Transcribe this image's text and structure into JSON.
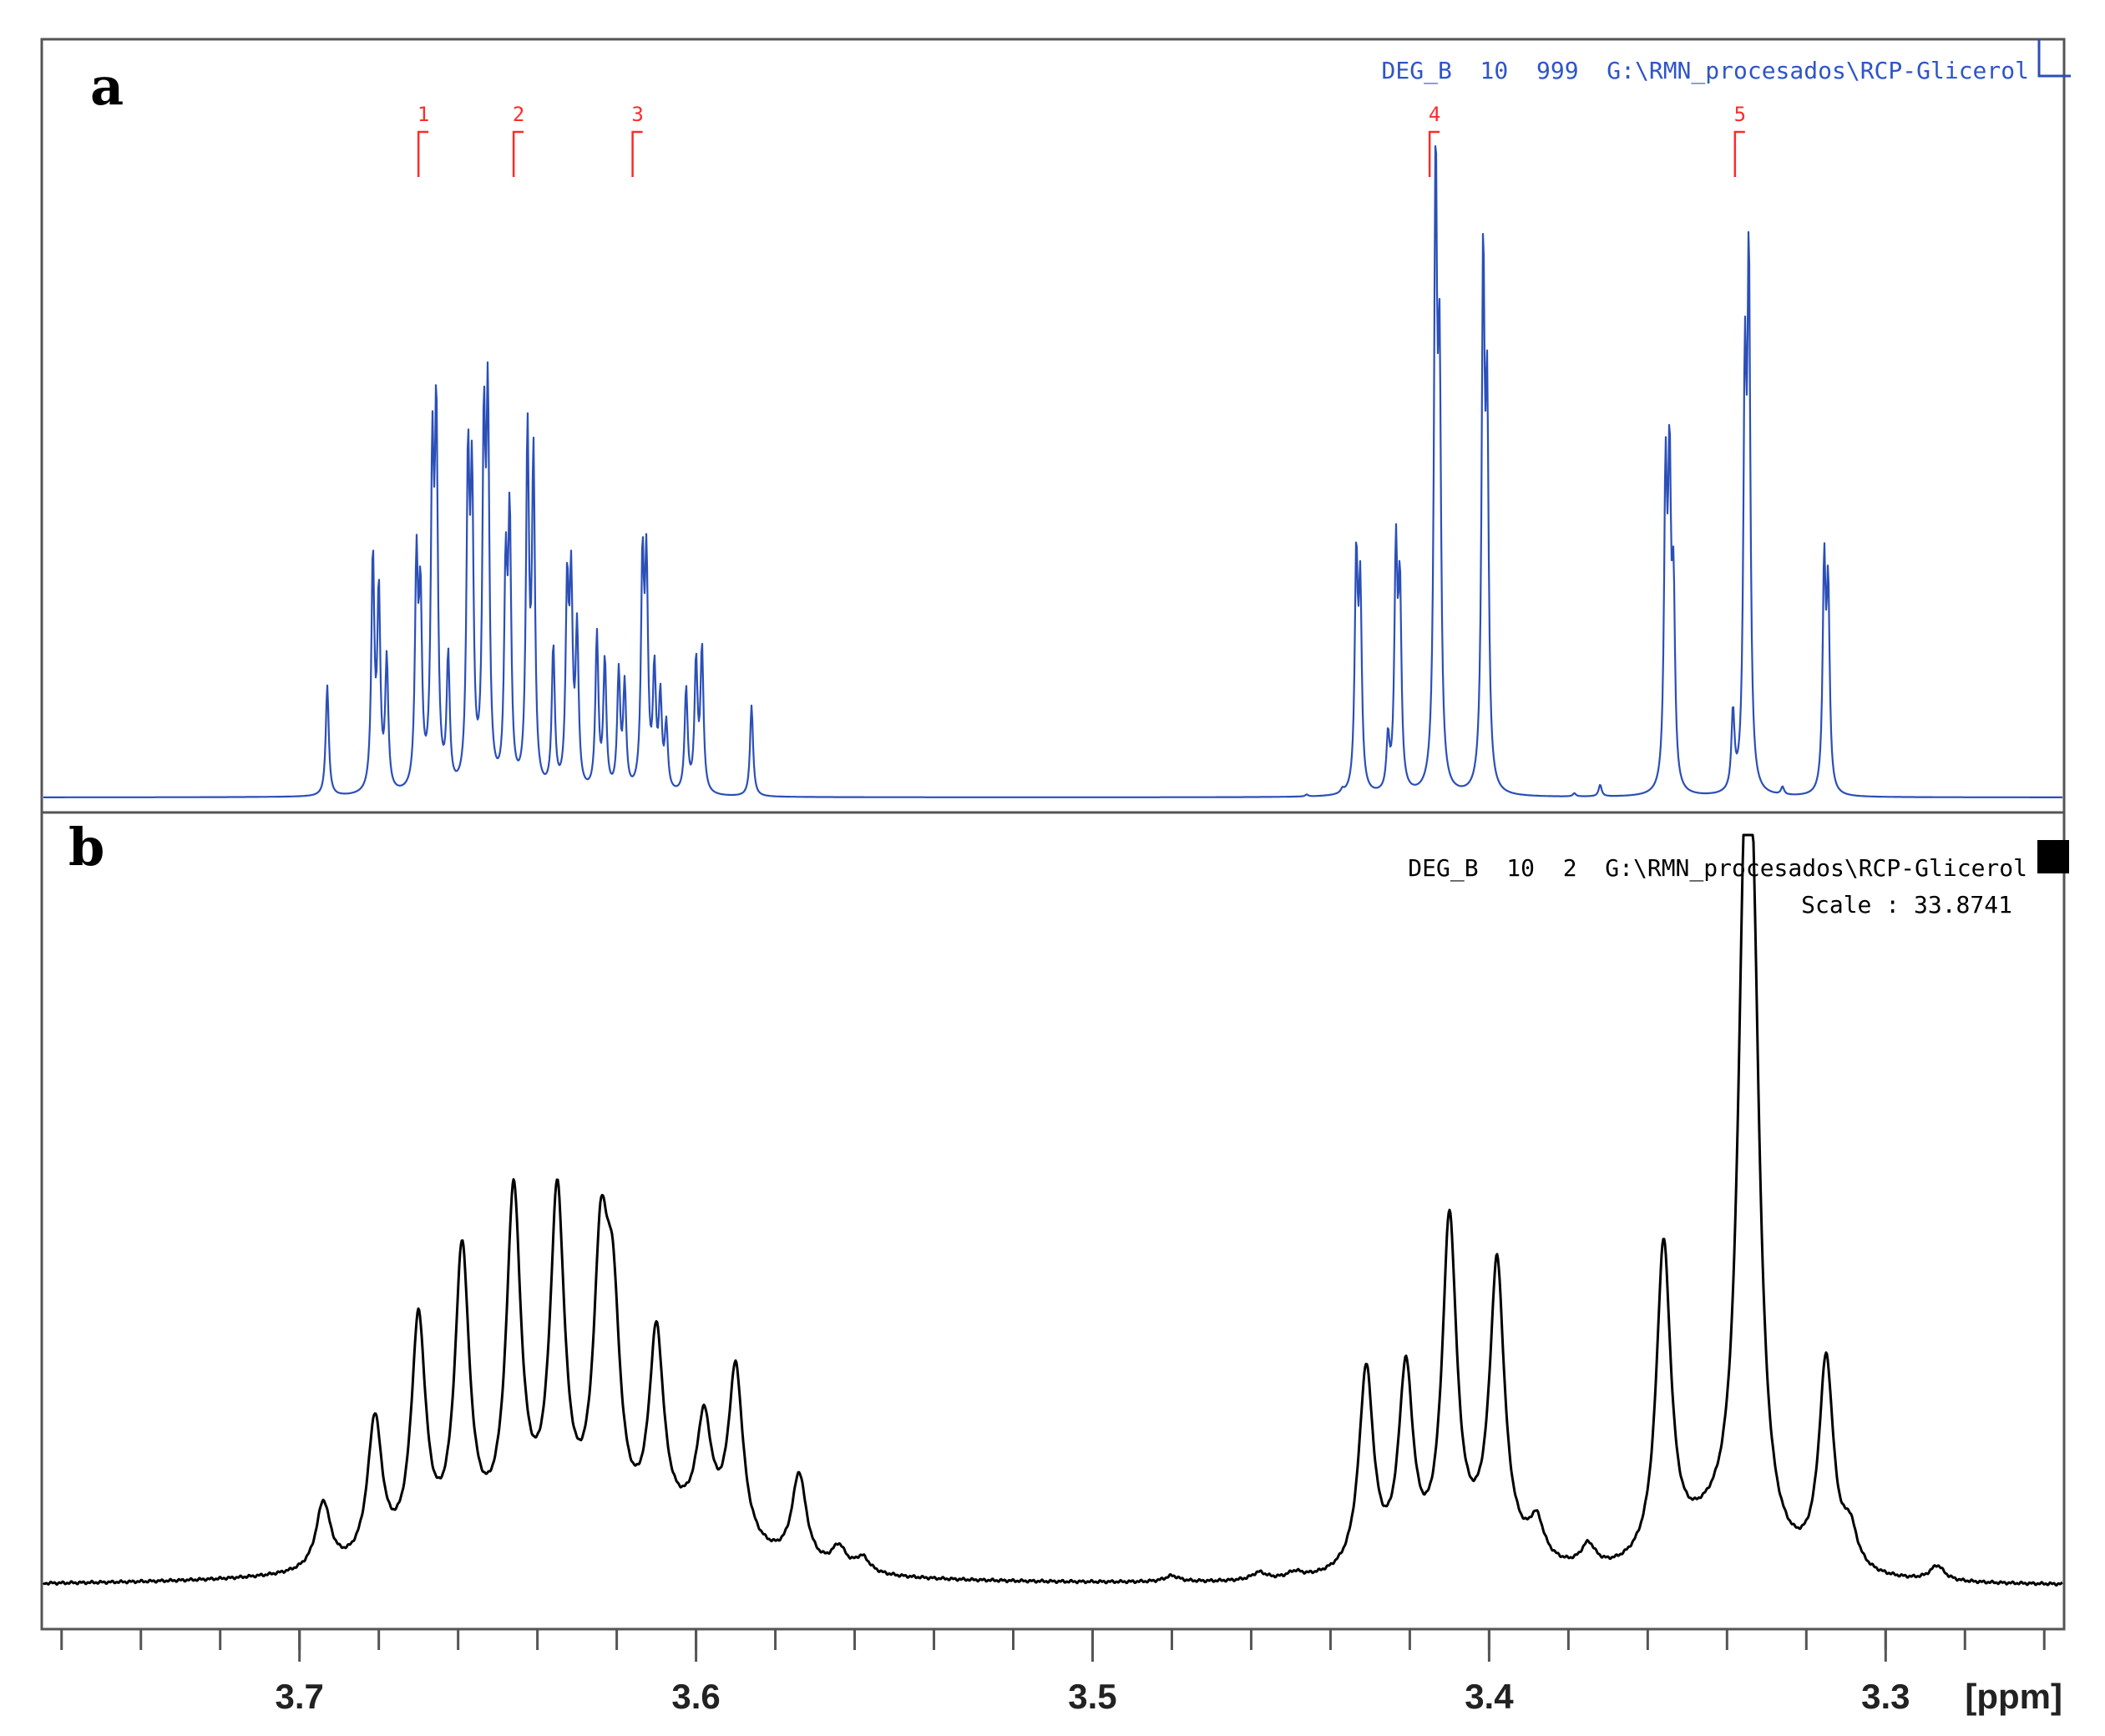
{
  "chart_data": [
    {
      "type": "line",
      "panel_label": "a",
      "header_text": "DEG_B  10  999  G:\\RMN_procesados\\RCP-Glicerol",
      "x_unit_label": "[ppm]",
      "xlim": [
        3.765,
        3.255
      ],
      "x_reversed": true,
      "ylim": [
        0,
        1.0
      ],
      "peak_linewidth": 0.00045,
      "line_color": "#2b4fb8",
      "marker_color": "#ff2a2a",
      "markers": [
        {
          "label": "1",
          "x": 3.67
        },
        {
          "label": "2",
          "x": 3.646
        },
        {
          "label": "3",
          "x": 3.616
        },
        {
          "label": "4",
          "x": 3.415
        },
        {
          "label": "5",
          "x": 3.338
        }
      ],
      "peaks": [
        [
          3.693,
          0.17
        ],
        [
          3.6815,
          0.36
        ],
        [
          3.68,
          0.3
        ],
        [
          3.678,
          0.2
        ],
        [
          3.6705,
          0.34
        ],
        [
          3.6695,
          0.28
        ],
        [
          3.6665,
          0.48
        ],
        [
          3.6655,
          0.55
        ],
        [
          3.6625,
          0.2
        ],
        [
          3.6575,
          0.48
        ],
        [
          3.6565,
          0.44
        ],
        [
          3.6535,
          0.52
        ],
        [
          3.6525,
          0.56
        ],
        [
          3.648,
          0.32
        ],
        [
          3.647,
          0.4
        ],
        [
          3.6425,
          0.54
        ],
        [
          3.641,
          0.5
        ],
        [
          3.636,
          0.22
        ],
        [
          3.6325,
          0.3
        ],
        [
          3.6315,
          0.3
        ],
        [
          3.63,
          0.24
        ],
        [
          3.625,
          0.24
        ],
        [
          3.623,
          0.2
        ],
        [
          3.6195,
          0.18
        ],
        [
          3.618,
          0.16
        ],
        [
          3.6135,
          0.34
        ],
        [
          3.6125,
          0.33
        ],
        [
          3.6105,
          0.18
        ],
        [
          3.609,
          0.14
        ],
        [
          3.6075,
          0.1
        ],
        [
          3.6025,
          0.16
        ],
        [
          3.6,
          0.2
        ],
        [
          3.5985,
          0.22
        ],
        [
          3.586,
          0.14
        ],
        [
          3.446,
          0.003
        ],
        [
          3.437,
          0.006
        ],
        [
          3.4335,
          0.35
        ],
        [
          3.4325,
          0.3
        ],
        [
          3.4255,
          0.08
        ],
        [
          3.4235,
          0.36
        ],
        [
          3.4225,
          0.3
        ],
        [
          3.4135,
          0.95
        ],
        [
          3.4125,
          0.6
        ],
        [
          3.4015,
          0.79
        ],
        [
          3.4005,
          0.55
        ],
        [
          3.3785,
          0.005
        ],
        [
          3.372,
          0.018
        ],
        [
          3.3555,
          0.46
        ],
        [
          3.3545,
          0.46
        ],
        [
          3.3535,
          0.28
        ],
        [
          3.3385,
          0.12
        ],
        [
          3.3355,
          0.6
        ],
        [
          3.3345,
          0.78
        ],
        [
          3.326,
          0.012
        ],
        [
          3.3155,
          0.34
        ],
        [
          3.3145,
          0.3
        ]
      ]
    },
    {
      "type": "line",
      "panel_label": "b",
      "header_text": "DEG_B  10  2  G:\\RMN_procesados\\RCP-Glicerol",
      "scale_text": "Scale : 33.8741",
      "x_unit_label": "[ppm]",
      "xlim": [
        3.765,
        3.255
      ],
      "x_reversed": true,
      "ylim": [
        0,
        1.0
      ],
      "peak_linewidth": 0.0022,
      "line_color": "#000000",
      "x_ticks_major": [
        3.7,
        3.6,
        3.5,
        3.4,
        3.3
      ],
      "x_ticks_minor_step": 0.02,
      "peaks": [
        [
          3.694,
          0.09
        ],
        [
          3.681,
          0.19
        ],
        [
          3.67,
          0.31
        ],
        [
          3.659,
          0.39
        ],
        [
          3.646,
          0.45
        ],
        [
          3.635,
          0.44
        ],
        [
          3.624,
          0.34
        ],
        [
          3.621,
          0.26
        ],
        [
          3.61,
          0.26
        ],
        [
          3.598,
          0.14
        ],
        [
          3.59,
          0.23
        ],
        [
          3.574,
          0.12
        ],
        [
          3.564,
          0.03
        ],
        [
          3.558,
          0.02
        ],
        [
          3.48,
          0.008
        ],
        [
          3.458,
          0.01
        ],
        [
          3.449,
          0.008
        ],
        [
          3.431,
          0.27
        ],
        [
          3.421,
          0.26
        ],
        [
          3.41,
          0.45
        ],
        [
          3.398,
          0.38
        ],
        [
          3.388,
          0.05
        ],
        [
          3.375,
          0.03
        ],
        [
          3.356,
          0.42
        ],
        [
          3.3355,
          0.71
        ],
        [
          3.3335,
          0.6
        ],
        [
          3.315,
          0.28
        ],
        [
          3.309,
          0.05
        ],
        [
          3.287,
          0.02
        ]
      ],
      "broad_components": [
        [
          3.64,
          0.05,
          0.03
        ],
        [
          3.6,
          0.05,
          0.015
        ],
        [
          3.4,
          0.035,
          0.012
        ],
        [
          3.345,
          0.05,
          0.01
        ]
      ]
    }
  ]
}
